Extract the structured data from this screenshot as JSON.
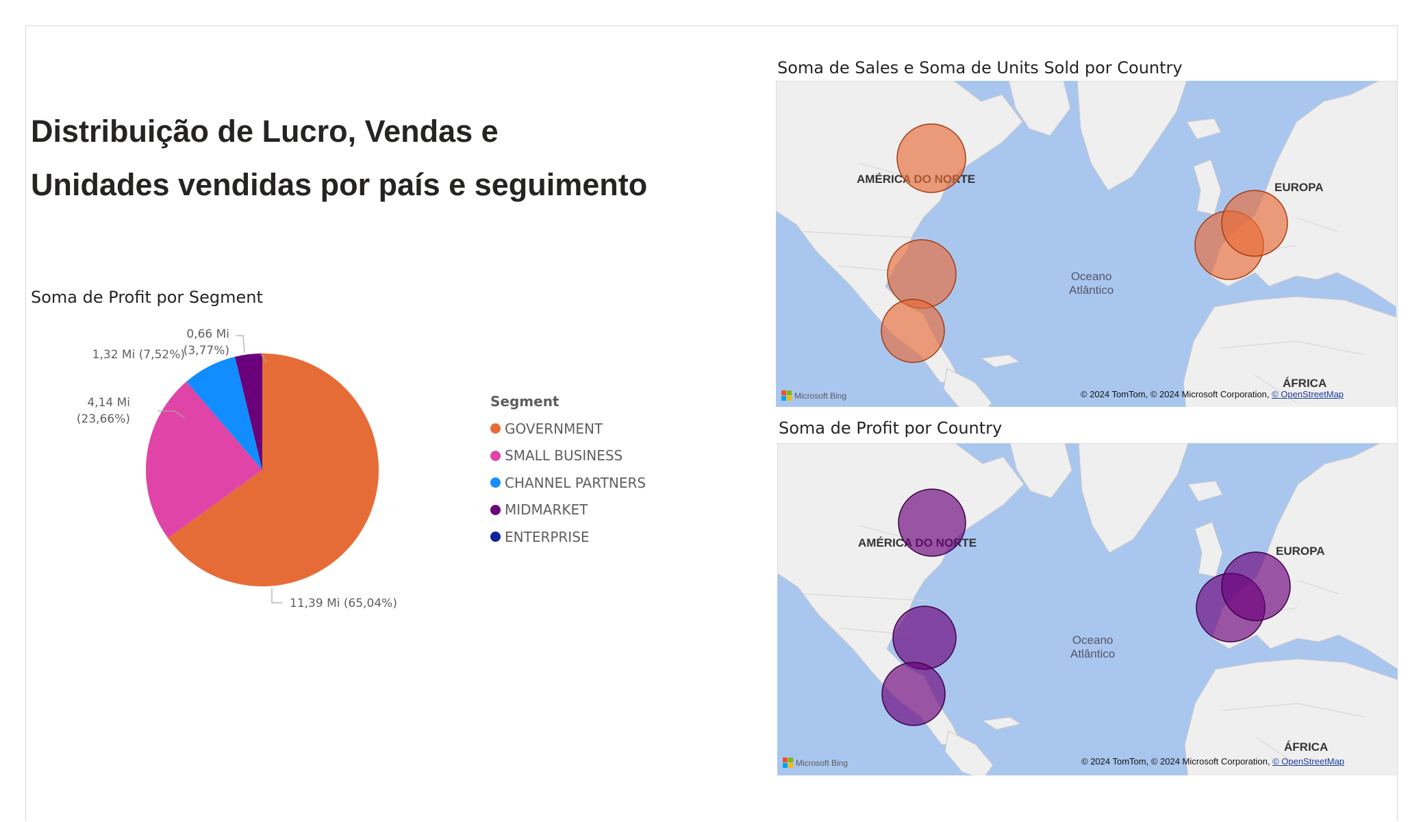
{
  "report": {
    "title_line1": "Distribuição de Lucro, Vendas e",
    "title_line2": "Unidades vendidas por país e seguimento"
  },
  "pie_visual": {
    "title": "Soma de Profit por Segment"
  },
  "chart_data": [
    {
      "type": "pie",
      "title": "Soma de Profit por Segment",
      "legend_title": "Segment",
      "legend_position": "right",
      "slices": [
        {
          "name": "GOVERNMENT",
          "value": 11.39,
          "percent": 65.04,
          "label": "11,39 Mi (65,04%)",
          "color": "#E66C37"
        },
        {
          "name": "SMALL BUSINESS",
          "value": 4.14,
          "percent": 23.66,
          "label": "4,14 Mi (23,66%)",
          "label_line1": "4,14 Mi",
          "label_line2": "(23,66%)",
          "color": "#E044A7"
        },
        {
          "name": "CHANNEL PARTNERS",
          "value": 1.32,
          "percent": 7.52,
          "label": "1,32 Mi (7,52%)",
          "color": "#118DFF"
        },
        {
          "name": "MIDMARKET",
          "value": 0.66,
          "percent": 3.77,
          "label": "0,66 Mi (3,77%)",
          "label_line1": "0,66 Mi",
          "label_line2": "(3,77%)",
          "color": "#6B007B"
        },
        {
          "name": "ENTERPRISE",
          "value": 0,
          "percent": 0,
          "color": "#12239E"
        }
      ]
    },
    {
      "type": "bubble-map",
      "title": "Soma de Sales e Soma de Units Sold por Country",
      "bubble_color": "#E66C37",
      "bubbles_shown": 5
    },
    {
      "type": "bubble-map",
      "title": "Soma de Profit por Country",
      "bubble_color": "#6B007B",
      "bubbles_shown": 5
    }
  ],
  "map_common": {
    "label_north_america": "AMÉRICA DO NORTE",
    "label_europe": "EUROPA",
    "label_ocean_line1": "Oceano",
    "label_ocean_line2": "Atlântico",
    "label_africa": "ÁFRICA",
    "attribution": "© 2024 TomTom, © 2024 Microsoft Corporation,",
    "attribution_link": "© OpenStreetMap",
    "bing_logo": "Microsoft Bing"
  },
  "colors": {
    "ocean": "#A9C6EF",
    "land": "#EFEFEF",
    "land_border": "#c8c8c8"
  }
}
